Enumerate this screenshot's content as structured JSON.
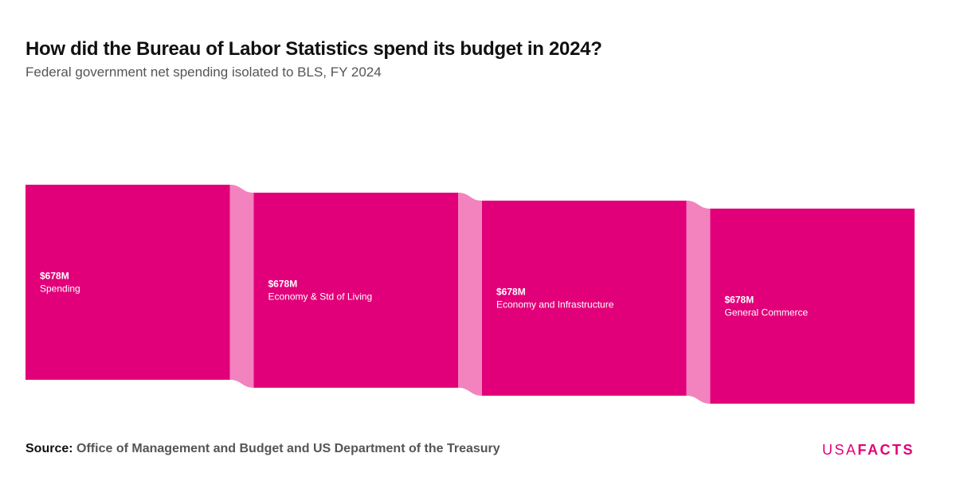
{
  "header": {
    "title": "How did the Bureau of Labor Statistics spend its budget in 2024?",
    "subtitle": "Federal government net spending isolated to BLS, FY 2024"
  },
  "chart_data": {
    "type": "sankey",
    "unit": "$M",
    "nodes": [
      {
        "value_label": "$678M",
        "label": "Spending",
        "value": 678
      },
      {
        "value_label": "$678M",
        "label": "Economy & Std of Living",
        "value": 678
      },
      {
        "value_label": "$678M",
        "label": "Economy and Infrastructure",
        "value": 678
      },
      {
        "value_label": "$678M",
        "label": "General Commerce",
        "value": 678
      }
    ],
    "links": [
      {
        "source": 0,
        "target": 1,
        "value": 678
      },
      {
        "source": 1,
        "target": 2,
        "value": 678
      },
      {
        "source": 2,
        "target": 3,
        "value": 678
      }
    ],
    "colors": {
      "node": "#e2007a",
      "link": "#f283be"
    }
  },
  "footer": {
    "source_label": "Source:",
    "source_text": "Office of Management and Budget and US Department of the Treasury"
  },
  "logo": {
    "usa": "USA",
    "facts": "FACTS"
  }
}
